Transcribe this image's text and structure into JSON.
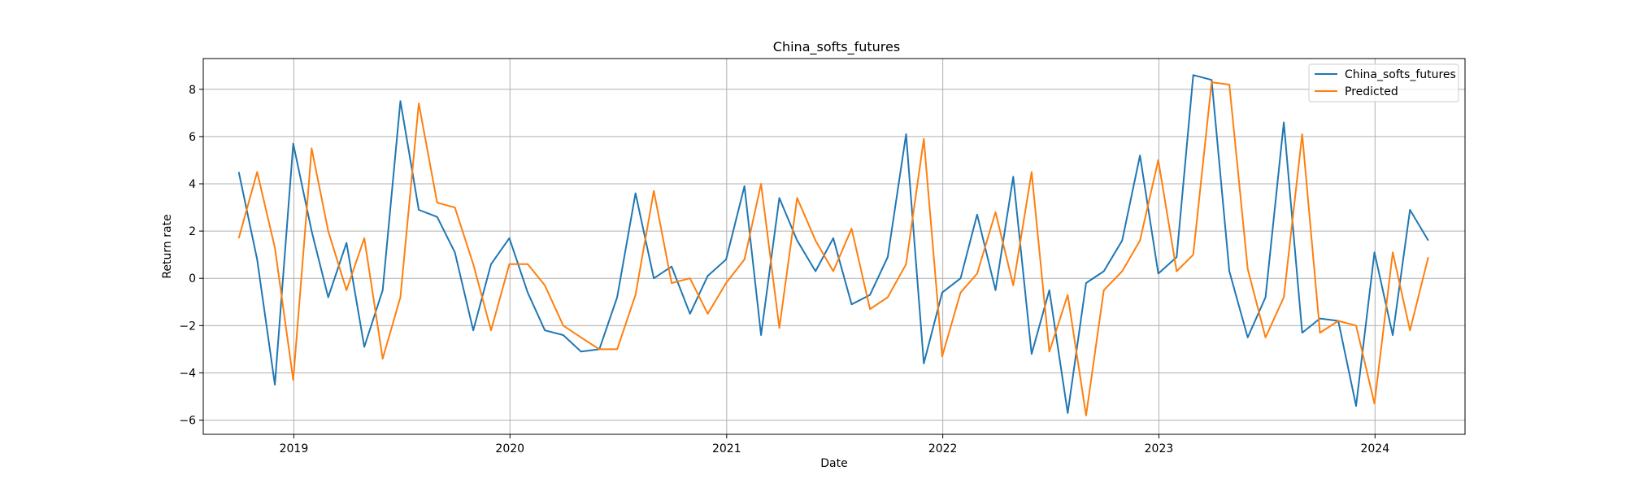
{
  "chart_data": {
    "type": "line",
    "title": "China_softs_futures",
    "xlabel": "Date",
    "ylabel": "Return rate",
    "grid": true,
    "legend_position": "top-right",
    "x_ticks": [
      "2019",
      "2020",
      "2021",
      "2022",
      "2023",
      "2024"
    ],
    "y_ticks": [
      -6,
      -4,
      -2,
      0,
      2,
      4,
      6,
      8
    ],
    "ylim": [
      -6.6,
      9.3
    ],
    "xlim": [
      "2018-08-01",
      "2024-06-01"
    ],
    "dates": [
      "2018-09-30",
      "2018-10-31",
      "2018-11-30",
      "2018-12-31",
      "2019-01-31",
      "2019-02-28",
      "2019-03-31",
      "2019-04-30",
      "2019-05-31",
      "2019-06-30",
      "2019-07-31",
      "2019-08-31",
      "2019-09-30",
      "2019-10-31",
      "2019-11-30",
      "2019-12-31",
      "2020-01-31",
      "2020-02-29",
      "2020-03-31",
      "2020-04-30",
      "2020-05-31",
      "2020-06-30",
      "2020-07-31",
      "2020-08-31",
      "2020-09-30",
      "2020-10-31",
      "2020-11-30",
      "2020-12-31",
      "2021-01-31",
      "2021-02-28",
      "2021-03-31",
      "2021-04-30",
      "2021-05-31",
      "2021-06-30",
      "2021-07-31",
      "2021-08-31",
      "2021-09-30",
      "2021-10-31",
      "2021-11-30",
      "2021-12-31",
      "2022-01-31",
      "2022-02-28",
      "2022-03-31",
      "2022-04-30",
      "2022-05-31",
      "2022-06-30",
      "2022-07-31",
      "2022-08-31",
      "2022-09-30",
      "2022-10-31",
      "2022-11-30",
      "2022-12-31",
      "2023-01-31",
      "2023-02-28",
      "2023-03-31",
      "2023-04-30",
      "2023-05-31",
      "2023-06-30",
      "2023-07-31",
      "2023-08-31",
      "2023-09-30",
      "2023-10-31",
      "2023-11-30",
      "2023-12-31",
      "2024-01-31",
      "2024-02-29",
      "2024-03-31"
    ],
    "series": [
      {
        "name": "China_softs_futures",
        "color": "#1f77b4",
        "values": [
          4.5,
          0.8,
          -4.5,
          5.7,
          2.0,
          -0.8,
          1.5,
          -2.9,
          -0.5,
          7.5,
          2.9,
          2.6,
          1.1,
          -2.2,
          0.6,
          1.7,
          -0.6,
          -2.2,
          -2.4,
          -3.1,
          -3.0,
          -0.8,
          3.6,
          0.0,
          0.5,
          -1.5,
          0.1,
          0.8,
          3.9,
          -2.4,
          3.4,
          1.6,
          0.3,
          1.7,
          -1.1,
          -0.7,
          0.9,
          6.1,
          -3.6,
          -0.6,
          0.0,
          2.7,
          -0.5,
          4.3,
          -3.2,
          -0.5,
          -5.7,
          -0.2,
          0.3,
          1.6,
          5.2,
          0.2,
          0.9,
          8.6,
          8.4,
          0.3,
          -2.5,
          -0.8,
          6.6,
          -2.3,
          -1.7,
          -1.8,
          -5.4,
          1.1,
          -2.4,
          2.9,
          1.6
        ]
      },
      {
        "name": "Predicted",
        "color": "#ff7f0e",
        "values": [
          1.7,
          4.5,
          1.3,
          -4.3,
          5.5,
          2.0,
          -0.5,
          1.7,
          -3.4,
          -0.8,
          7.4,
          3.2,
          3.0,
          0.6,
          -2.2,
          0.6,
          0.6,
          -0.3,
          -2.0,
          -2.5,
          -3.0,
          -3.0,
          -0.7,
          3.7,
          -0.2,
          0.0,
          -1.5,
          -0.2,
          0.8,
          4.0,
          -2.1,
          3.4,
          1.6,
          0.3,
          2.1,
          -1.3,
          -0.8,
          0.6,
          5.9,
          -3.3,
          -0.6,
          0.2,
          2.8,
          -0.3,
          4.5,
          -3.1,
          -0.7,
          -5.8,
          -0.5,
          0.3,
          1.6,
          5.0,
          0.3,
          1.0,
          8.3,
          8.2,
          0.4,
          -2.5,
          -0.8,
          6.1,
          -2.3,
          -1.8,
          -2.0,
          -5.3,
          1.1,
          -2.2,
          0.9
        ]
      }
    ]
  }
}
